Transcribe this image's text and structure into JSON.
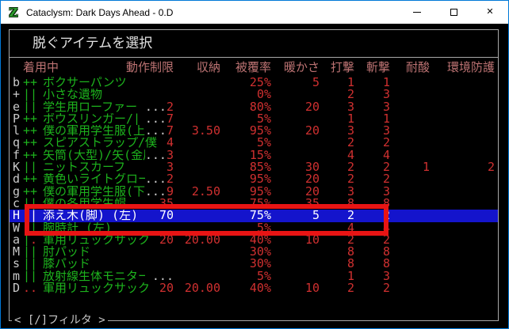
{
  "window": {
    "title": "Cataclysm: Dark Days Ahead - 0.D",
    "icon_letter": "Z",
    "controls": {
      "minimize": "minimize",
      "maximize": "maximize",
      "close": "close"
    }
  },
  "dialog": {
    "title": "脱ぐアイテムを選択",
    "filter_hint": "< [/]フィルタ >"
  },
  "table": {
    "headers": [
      "着用中",
      "動作制限",
      "収納",
      "被覆率",
      "暖かさ",
      "打撃",
      "斬撃",
      "耐酸",
      "環境防護"
    ],
    "rows": [
      {
        "letter": "b",
        "sym": "++",
        "sym_colors": "gg",
        "name": "ボクサーパンツ",
        "ell": "",
        "enc": "",
        "storage": "",
        "coverage": "25%",
        "warmth": "5",
        "bash": "1",
        "cut": "1",
        "acid": "",
        "env": "",
        "selected": false
      },
      {
        "letter": "+",
        "sym": "||",
        "sym_colors": "gg",
        "name": "小さな遺物",
        "ell": "",
        "enc": "",
        "storage": "",
        "coverage": "0%",
        "warmth": "",
        "bash": "2",
        "cut": "3",
        "acid": "",
        "env": "",
        "selected": false
      },
      {
        "letter": "e",
        "sym": "||",
        "sym_colors": "gg",
        "name": "学生用ローファー 【",
        "ell": "...",
        "enc": "2",
        "storage": "",
        "coverage": "80%",
        "warmth": "20",
        "bash": "3",
        "cut": "3",
        "acid": "",
        "env": "",
        "selected": false
      },
      {
        "letter": "P",
        "sym": "++",
        "sym_colors": "gg",
        "name": "ボウスリンガー/||",
        "ell": " ...",
        "enc": "7",
        "storage": "",
        "coverage": "5%",
        "warmth": "",
        "bash": "1",
        "cut": "1",
        "acid": "",
        "env": "",
        "selected": false
      },
      {
        "letter": "l",
        "sym": "++",
        "sym_colors": "gg",
        "name": "僕の軍用学生服(上)",
        "ell": "...",
        "enc": "7",
        "storage": "3.50",
        "coverage": "95%",
        "warmth": "20",
        "bash": "3",
        "cut": "3",
        "acid": "",
        "env": "",
        "selected": false
      },
      {
        "letter": "q",
        "sym": "++",
        "sym_colors": "gg",
        "name": "スピアストラップ/僕",
        "ell": "",
        "enc": "4",
        "storage": "",
        "coverage": "5%",
        "warmth": "",
        "bash": "2",
        "cut": "2",
        "acid": "",
        "env": "",
        "selected": false
      },
      {
        "letter": "f",
        "sym": "++",
        "sym_colors": "gg",
        "name": "矢筒(大型)/矢(金属",
        "ell": "...",
        "enc": "3",
        "storage": "",
        "coverage": "15%",
        "warmth": "",
        "bash": "4",
        "cut": "4",
        "acid": "",
        "env": "",
        "selected": false
      },
      {
        "letter": "K",
        "sym": "||",
        "sym_colors": "gg",
        "name": "ニットスカーフ",
        "ell": "",
        "enc": "3",
        "storage": "",
        "coverage": "85%",
        "warmth": "30",
        "bash": "2",
        "cut": "2",
        "acid": "1",
        "env": "2",
        "selected": false
      },
      {
        "letter": "d",
        "sym": "++",
        "sym_colors": "gg",
        "name": "黄色いライトグロー",
        "ell": "...",
        "enc": "2",
        "storage": "",
        "coverage": "95%",
        "warmth": "20",
        "bash": "2",
        "cut": "2",
        "acid": "",
        "env": "",
        "selected": false
      },
      {
        "letter": "g",
        "sym": "++",
        "sym_colors": "gg",
        "name": "僕の軍用学生服(下)",
        "ell": "...",
        "enc": "9",
        "storage": "2.50",
        "coverage": "95%",
        "warmth": "20",
        "bash": "3",
        "cut": "3",
        "acid": "",
        "env": "",
        "selected": false
      },
      {
        "letter": "c",
        "sym": "||",
        "sym_colors": "gg",
        "name": "僕の冬用学生帽 【M",
        "ell": "...",
        "enc": "35",
        "storage": "",
        "coverage": "75%",
        "warmth": "35",
        "bash": "8",
        "cut": "8",
        "acid": "",
        "env": "",
        "selected": false
      },
      {
        "letter": "H",
        "sym": "||",
        "sym_colors": "gg",
        "name": "添え木(脚) (左)",
        "ell": "",
        "enc": "70",
        "storage": "",
        "coverage": "75%",
        "warmth": "5",
        "bash": "2",
        "cut": "2",
        "acid": "",
        "env": "",
        "selected": true
      },
      {
        "letter": "W",
        "sym": "||",
        "sym_colors": "gg",
        "name": "腕時計 (左)",
        "ell": "",
        "enc": "",
        "storage": "",
        "coverage": "5%",
        "warmth": "",
        "bash": "4",
        "cut": "4",
        "acid": "",
        "env": "",
        "selected": false
      },
      {
        "letter": "a",
        "sym": "|.",
        "sym_colors": "gr",
        "name": "軍用リュックサック",
        "ell": "",
        "enc": "20",
        "storage": "20.00",
        "coverage": "40%",
        "warmth": "10",
        "bash": "2",
        "cut": "2",
        "acid": "",
        "env": "",
        "selected": false
      },
      {
        "letter": "M",
        "sym": "||",
        "sym_colors": "gg",
        "name": "肘パッド",
        "ell": "",
        "enc": "",
        "storage": "",
        "coverage": "30%",
        "warmth": "",
        "bash": "8",
        "cut": "8",
        "acid": "",
        "env": "",
        "selected": false
      },
      {
        "letter": "s",
        "sym": "||",
        "sym_colors": "gg",
        "name": "膝パッド",
        "ell": "",
        "enc": "",
        "storage": "",
        "coverage": "30%",
        "warmth": "",
        "bash": "8",
        "cut": "8",
        "acid": "",
        "env": "",
        "selected": false
      },
      {
        "letter": "m",
        "sym": "||",
        "sym_colors": "gg",
        "name": "放射線生体モニター",
        "ell": " ...",
        "enc": "",
        "storage": "",
        "coverage": "5%",
        "warmth": "",
        "bash": "1",
        "cut": "3",
        "acid": "",
        "env": "",
        "selected": false
      },
      {
        "letter": "D",
        "sym": "..",
        "sym_colors": "rr",
        "name": "軍用リュックサック",
        "ell": "",
        "enc": "20",
        "storage": "20.00",
        "coverage": "40%",
        "warmth": "10",
        "bash": "2",
        "cut": "2",
        "acid": "",
        "env": "",
        "selected": false
      }
    ]
  },
  "annotation": {
    "shape": "rectangle",
    "color": "#e81414"
  },
  "colors": {
    "window_accent": "#0078d7",
    "titlebar_bg": "#ffffff",
    "game_bg": "#000000",
    "box_border": "#a8a8a8",
    "header_pink": "#bd7373",
    "item_green": "#1db31d",
    "value_red": "#d03030",
    "text_gray": "#c9c9c9",
    "selection_blue": "#1414cc",
    "annotation_red": "#e81414"
  }
}
